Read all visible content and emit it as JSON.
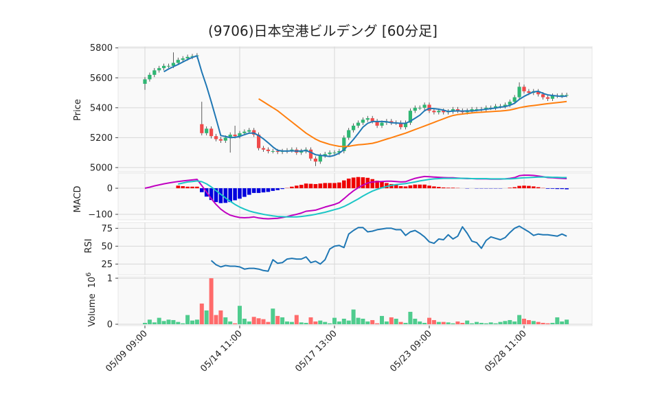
{
  "chart_data": [
    {
      "type": "candlestick",
      "title": "(9706)日本空港ビルデング  [60分足]",
      "ylabel": "Price",
      "ylim": [
        4972,
        5808
      ],
      "yticks": [
        5000,
        5200,
        5400,
        5600,
        5800
      ],
      "grid": true,
      "up_color": "#2fb673",
      "down_color": "#f04b4b",
      "open": [
        5560,
        5590,
        5620,
        5650,
        5665,
        5680,
        5680,
        5700,
        5720,
        5730,
        5740,
        5745,
        5290,
        5230,
        5260,
        5210,
        5190,
        5180,
        5200,
        5220,
        5210,
        5230,
        5240,
        5250,
        5220,
        5130,
        5120,
        5110,
        5110,
        5105,
        5110,
        5115,
        5120,
        5100,
        5110,
        5120,
        5060,
        5040,
        5080,
        5090,
        5100,
        5100,
        5110,
        5200,
        5250,
        5280,
        5300,
        5320,
        5330,
        5310,
        5280,
        5300,
        5310,
        5300,
        5300,
        5270,
        5300,
        5380,
        5400,
        5400,
        5420,
        5380,
        5370,
        5380,
        5370,
        5375,
        5390,
        5380,
        5370,
        5380,
        5390,
        5390,
        5390,
        5400,
        5400,
        5410,
        5410,
        5420,
        5440,
        5470,
        5540,
        5510,
        5500,
        5510,
        5490,
        5470,
        5460,
        5480,
        5480,
        5485
      ],
      "high": [
        5605,
        5635,
        5665,
        5680,
        5695,
        5695,
        5770,
        5735,
        5745,
        5755,
        5760,
        5765,
        5440,
        5275,
        5275,
        5225,
        5205,
        5215,
        5235,
        5280,
        5245,
        5255,
        5265,
        5265,
        5235,
        5145,
        5135,
        5125,
        5125,
        5125,
        5130,
        5135,
        5135,
        5125,
        5135,
        5135,
        5075,
        5095,
        5105,
        5115,
        5115,
        5125,
        5215,
        5265,
        5295,
        5315,
        5335,
        5345,
        5345,
        5325,
        5315,
        5325,
        5325,
        5315,
        5315,
        5315,
        5395,
        5415,
        5415,
        5435,
        5435,
        5395,
        5395,
        5395,
        5390,
        5405,
        5405,
        5395,
        5395,
        5405,
        5405,
        5405,
        5415,
        5415,
        5425,
        5425,
        5435,
        5455,
        5485,
        5570,
        5555,
        5525,
        5525,
        5525,
        5505,
        5485,
        5495,
        5495,
        5500,
        5500
      ],
      "low": [
        5520,
        5575,
        5605,
        5635,
        5650,
        5665,
        5665,
        5685,
        5705,
        5715,
        5725,
        5730,
        5215,
        5215,
        5195,
        5175,
        5165,
        5165,
        5100,
        5195,
        5195,
        5215,
        5225,
        5205,
        5115,
        5105,
        5095,
        5095,
        5090,
        5090,
        5095,
        5100,
        5085,
        5085,
        5095,
        5045,
        5010,
        5025,
        5065,
        5075,
        5085,
        5085,
        5095,
        5185,
        5235,
        5265,
        5285,
        5305,
        5295,
        5265,
        5265,
        5285,
        5285,
        5285,
        5255,
        5255,
        5285,
        5365,
        5385,
        5385,
        5365,
        5355,
        5355,
        5355,
        5355,
        5360,
        5365,
        5355,
        5355,
        5365,
        5375,
        5375,
        5375,
        5385,
        5385,
        5395,
        5395,
        5405,
        5425,
        5455,
        5495,
        5485,
        5485,
        5475,
        5455,
        5445,
        5445,
        5465,
        5465,
        5470
      ],
      "close": [
        5590,
        5620,
        5650,
        5665,
        5680,
        5680,
        5700,
        5720,
        5730,
        5740,
        5745,
        5750,
        5230,
        5260,
        5210,
        5190,
        5180,
        5200,
        5220,
        5210,
        5230,
        5240,
        5250,
        5220,
        5130,
        5120,
        5110,
        5110,
        5105,
        5110,
        5115,
        5120,
        5100,
        5110,
        5120,
        5060,
        5040,
        5080,
        5090,
        5100,
        5100,
        5110,
        5200,
        5250,
        5280,
        5300,
        5320,
        5330,
        5310,
        5280,
        5300,
        5310,
        5300,
        5300,
        5270,
        5300,
        5380,
        5400,
        5400,
        5420,
        5380,
        5370,
        5380,
        5370,
        5375,
        5390,
        5380,
        5370,
        5380,
        5390,
        5390,
        5390,
        5400,
        5400,
        5410,
        5410,
        5420,
        5440,
        5470,
        5540,
        5510,
        5500,
        5510,
        5490,
        5470,
        5460,
        5480,
        5480,
        5485,
        5485
      ],
      "lines": [
        {
          "color": "#1f77b4",
          "values": [
            null,
            null,
            null,
            null,
            5641,
            5659,
            5675,
            5689,
            5706,
            5722,
            5737,
            5747,
            5639,
            5545,
            5439,
            5328,
            5214,
            5208,
            5200,
            5202,
            5208,
            5220,
            5230,
            5230,
            5214,
            5192,
            5166,
            5138,
            5115,
            5111,
            5110,
            5112,
            5110,
            5111,
            5113,
            5102,
            5086,
            5082,
            5078,
            5074,
            5082,
            5096,
            5120,
            5152,
            5188,
            5228,
            5270,
            5296,
            5308,
            5308,
            5308,
            5306,
            5300,
            5298,
            5296,
            5296,
            5310,
            5330,
            5350,
            5380,
            5396,
            5394,
            5390,
            5384,
            5375,
            5377,
            5379,
            5377,
            5379,
            5378,
            5382,
            5386,
            5390,
            5394,
            5398,
            5404,
            5408,
            5416,
            5430,
            5456,
            5476,
            5492,
            5506,
            5510,
            5496,
            5486,
            5482,
            5478,
            5475,
            5478
          ]
        },
        {
          "color": "#ff7f0e",
          "values": [
            null,
            null,
            null,
            null,
            null,
            null,
            null,
            null,
            null,
            null,
            null,
            null,
            null,
            null,
            null,
            null,
            null,
            null,
            null,
            null,
            null,
            null,
            null,
            null,
            5460,
            5440,
            5420,
            5400,
            5380,
            5355,
            5330,
            5305,
            5280,
            5255,
            5230,
            5210,
            5190,
            5175,
            5165,
            5155,
            5148,
            5142,
            5140,
            5142,
            5148,
            5152,
            5155,
            5158,
            5162,
            5170,
            5180,
            5190,
            5200,
            5210,
            5220,
            5230,
            5242,
            5254,
            5266,
            5278,
            5290,
            5302,
            5314,
            5326,
            5338,
            5348,
            5354,
            5358,
            5362,
            5365,
            5368,
            5370,
            5372,
            5374,
            5376,
            5378,
            5381,
            5385,
            5392,
            5400,
            5406,
            5411,
            5415,
            5419,
            5423,
            5427,
            5431,
            5434,
            5438,
            5442
          ]
        }
      ]
    },
    {
      "type": "macd",
      "ylabel": "MACD",
      "ylim": [
        -121,
        58
      ],
      "yticks": [
        {
          "value": -100,
          "label": "−100"
        },
        0
      ],
      "grid": true,
      "lines": [
        {
          "color": "#c000c0",
          "values": [
            0,
            4,
            9,
            13,
            17,
            20,
            23,
            26,
            28,
            30,
            32,
            34,
            10,
            -15,
            -40,
            -62,
            -80,
            -93,
            -103,
            -108,
            -112,
            -113,
            -112,
            -110,
            -114,
            -116,
            -117,
            -116,
            -115,
            -112,
            -109,
            -104,
            -100,
            -95,
            -88,
            -86,
            -84,
            -78,
            -72,
            -67,
            -62,
            -55,
            -40,
            -24,
            -10,
            2,
            12,
            20,
            24,
            25,
            26,
            27,
            27,
            26,
            24,
            25,
            32,
            38,
            42,
            45,
            44,
            43,
            42,
            41,
            40,
            40,
            39,
            38,
            37,
            37,
            36,
            36,
            36,
            35,
            35,
            35,
            36,
            38,
            41,
            48,
            50,
            50,
            49,
            47,
            44,
            41,
            40,
            39,
            38,
            37
          ]
        },
        {
          "color": "#1cc6c6",
          "values": [
            null,
            null,
            null,
            null,
            null,
            null,
            null,
            16,
            20,
            24,
            26,
            28,
            25,
            17,
            5,
            -9,
            -23,
            -37,
            -50,
            -62,
            -72,
            -80,
            -87,
            -92,
            -96,
            -100,
            -103,
            -106,
            -108,
            -109,
            -110,
            -110,
            -110,
            -108,
            -106,
            -103,
            -100,
            -96,
            -92,
            -87,
            -82,
            -77,
            -70,
            -61,
            -51,
            -41,
            -30,
            -20,
            -11,
            -4,
            2,
            7,
            11,
            14,
            16,
            18,
            21,
            24,
            28,
            31,
            34,
            36,
            37,
            38,
            38,
            38,
            38,
            38,
            38,
            37,
            37,
            37,
            37,
            36,
            36,
            36,
            36,
            36,
            37,
            39,
            40,
            41,
            42,
            43,
            43,
            43,
            42,
            42,
            41,
            41
          ]
        }
      ],
      "histogram": {
        "up_color": "#ee0000",
        "down_color": "#0000dd",
        "values": [
          null,
          null,
          null,
          null,
          null,
          null,
          null,
          10,
          8,
          6,
          6,
          6,
          -15,
          -32,
          -45,
          -53,
          -57,
          -56,
          -53,
          -46,
          -40,
          -33,
          -25,
          -18,
          -18,
          -16,
          -14,
          -10,
          -7,
          -3,
          1,
          6,
          10,
          13,
          18,
          17,
          16,
          18,
          20,
          20,
          20,
          22,
          30,
          37,
          41,
          43,
          42,
          40,
          35,
          29,
          24,
          20,
          16,
          12,
          8,
          7,
          11,
          14,
          14,
          14,
          10,
          7,
          5,
          3,
          2,
          2,
          1,
          0,
          -1,
          0,
          -1,
          -1,
          -1,
          -1,
          -1,
          -1,
          0,
          2,
          4,
          9,
          10,
          9,
          7,
          4,
          1,
          -2,
          -2,
          -3,
          -3,
          -4
        ]
      }
    },
    {
      "type": "line",
      "ylabel": "RSI",
      "ylim": [
        10,
        83
      ],
      "yticks": [
        25,
        50,
        75
      ],
      "grid": true,
      "lines": [
        {
          "color": "#1f77b4",
          "values": [
            null,
            null,
            null,
            null,
            null,
            null,
            null,
            null,
            null,
            null,
            null,
            null,
            null,
            null,
            30,
            24,
            21,
            23,
            22,
            22,
            21,
            18,
            19,
            19,
            18,
            16,
            15,
            31,
            26,
            27,
            32,
            33,
            32,
            32,
            35,
            27,
            29,
            25,
            31,
            46,
            50,
            51,
            48,
            67,
            72,
            76,
            76,
            70,
            71,
            73,
            74,
            75,
            75,
            73,
            73,
            65,
            70,
            72,
            68,
            63,
            56,
            54,
            60,
            59,
            66,
            60,
            64,
            77,
            68,
            57,
            55,
            47,
            58,
            63,
            61,
            59,
            62,
            69,
            75,
            78,
            74,
            70,
            65,
            67,
            66,
            66,
            65,
            64,
            67,
            64
          ]
        }
      ]
    },
    {
      "type": "bar",
      "ylabel": "Volume",
      "offset_text": {
        "base": 10,
        "exponent": 6
      },
      "ylim": [
        -0.03,
        1.03
      ],
      "yticks": [
        0,
        1
      ],
      "grid": true,
      "up_color": "#4fcc8e",
      "down_color": "#ff6b6b",
      "categories": [
        "05/09 09:00",
        null,
        null,
        null,
        null,
        null,
        null,
        null,
        null,
        null,
        null,
        null,
        null,
        null,
        null,
        null,
        null,
        null,
        null,
        null,
        "05/14 11:00",
        null,
        null,
        null,
        null,
        null,
        null,
        null,
        null,
        null,
        null,
        null,
        null,
        null,
        null,
        null,
        null,
        null,
        null,
        null,
        "05/17 13:00",
        null,
        null,
        null,
        null,
        null,
        null,
        null,
        null,
        null,
        null,
        null,
        null,
        null,
        null,
        null,
        null,
        null,
        null,
        null,
        "05/23 09:00",
        null,
        null,
        null,
        null,
        null,
        null,
        null,
        null,
        null,
        null,
        null,
        null,
        null,
        null,
        null,
        null,
        null,
        null,
        null,
        "05/28 11:00",
        null,
        null,
        null,
        null,
        null,
        null,
        null,
        null,
        null
      ],
      "values": [
        0.03,
        0.1,
        0.04,
        0.14,
        0.07,
        0.1,
        0.09,
        0.05,
        0.02,
        0.2,
        0.08,
        0.1,
        0.45,
        0.3,
        1,
        0.2,
        0.3,
        0.15,
        0.06,
        0.02,
        0.4,
        0.12,
        0.06,
        0.16,
        0.13,
        0.11,
        0.05,
        0.34,
        0.18,
        0.15,
        0.06,
        0.05,
        0.2,
        0.04,
        0.03,
        0.15,
        0.06,
        0.08,
        0.05,
        0.02,
        0.14,
        0.06,
        0.12,
        0.08,
        0.32,
        0.14,
        0.12,
        0.06,
        0.09,
        0.02,
        0.18,
        0.06,
        0.15,
        0.12,
        0.05,
        0.03,
        0.27,
        0.12,
        0.06,
        0.03,
        0.14,
        0.09,
        0.05,
        0.05,
        0.04,
        0.02,
        0.06,
        0.03,
        0.08,
        0.02,
        0.05,
        0.03,
        0.02,
        0.04,
        0.02,
        0.05,
        0.07,
        0.09,
        0.06,
        0.2,
        0.12,
        0.09,
        0.07,
        0.05,
        0.03,
        0.02,
        0.03,
        0.15,
        0.06,
        0.1
      ]
    }
  ]
}
